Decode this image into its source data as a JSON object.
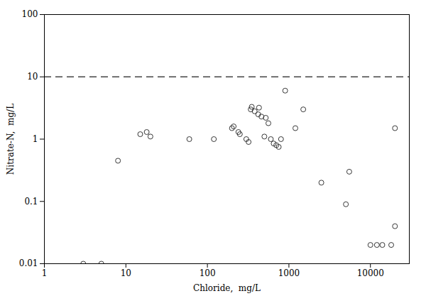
{
  "chart_data": {
    "type": "scatter",
    "xlabel": "Chloride,  mg/L",
    "ylabel": "Nitrate-N,  mg/L",
    "log": true,
    "grid": false,
    "xlim": [
      1,
      30000
    ],
    "ylim": [
      0.01,
      100
    ],
    "xticks": [
      1,
      10,
      100,
      1000,
      10000
    ],
    "yticks": [
      0.01,
      0.1,
      1,
      10,
      100
    ],
    "color": "#222222",
    "marker": "open_circle",
    "x": [
      3,
      5,
      8,
      15,
      18,
      20,
      60,
      120,
      200,
      210,
      240,
      250,
      350,
      430,
      300,
      320,
      340,
      380,
      420,
      460,
      500,
      520,
      560,
      600,
      650,
      700,
      750,
      800,
      900,
      1200,
      1500,
      2500,
      5000,
      5500,
      10000,
      12000,
      14000,
      18000,
      20000,
      20000
    ],
    "values": [
      0.01,
      0.01,
      0.45,
      1.2,
      1.3,
      1.1,
      1.0,
      1.0,
      1.5,
      1.6,
      1.3,
      1.2,
      3.3,
      3.2,
      1.0,
      0.9,
      3.0,
      2.8,
      2.5,
      2.3,
      1.1,
      2.2,
      1.8,
      1.0,
      0.85,
      0.8,
      0.75,
      1.0,
      6.0,
      1.5,
      3.0,
      0.2,
      0.09,
      0.3,
      0.02,
      0.02,
      0.02,
      0.02,
      0.04,
      1.5
    ],
    "reference_lines": [
      {
        "y": 10,
        "color": "#444444",
        "line_style": "dashed"
      }
    ]
  }
}
